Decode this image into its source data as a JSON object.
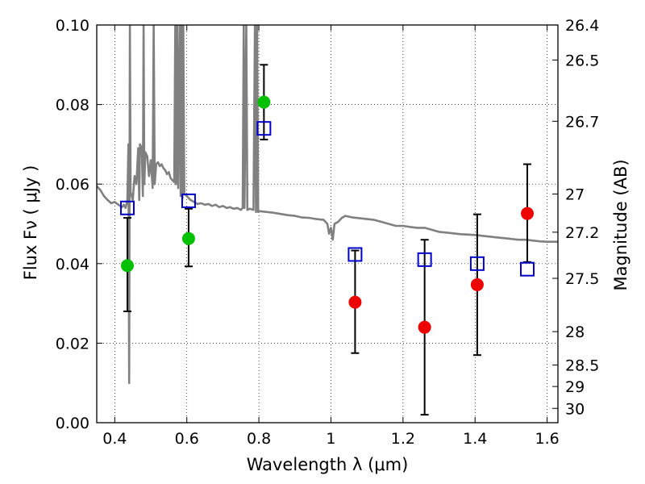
{
  "chart_data": {
    "type": "scatter",
    "title": "",
    "xlabel": "Wavelength  λ (μm)",
    "ylabel": "Flux  Fν  ( μJy )",
    "y2label": "Magnitude (AB)",
    "xlim": [
      0.35,
      1.63
    ],
    "ylim": [
      0.0,
      0.1
    ],
    "grid": true,
    "x_ticks": [
      0.4,
      0.6,
      0.8,
      1.0,
      1.2,
      1.4,
      1.6
    ],
    "x_tick_labels": [
      "0.4",
      "0.6",
      "0.8",
      "1",
      "1.2",
      "1.4",
      "1.6"
    ],
    "y_ticks": [
      0.0,
      0.02,
      0.04,
      0.06,
      0.08,
      0.1
    ],
    "y_tick_labels": [
      "0.00",
      "0.02",
      "0.04",
      "0.06",
      "0.08",
      "0.10"
    ],
    "mag_ticks": [
      {
        "label": "26.4",
        "flux": 0.1
      },
      {
        "label": "26.5",
        "flux": 0.0912
      },
      {
        "label": "26.7",
        "flux": 0.0758
      },
      {
        "label": "27",
        "flux": 0.0575
      },
      {
        "label": "27.2",
        "flux": 0.0479
      },
      {
        "label": "27.5",
        "flux": 0.0363
      },
      {
        "label": "28",
        "flux": 0.0229
      },
      {
        "label": "28.5",
        "flux": 0.0145
      },
      {
        "label": "29",
        "flux": 0.0091
      },
      {
        "label": "30",
        "flux": 0.0036
      }
    ],
    "observed_points": [
      {
        "x": 0.435,
        "y": 0.0395,
        "err_low": 0.0115,
        "err_high": 0.012,
        "color": "#00c000"
      },
      {
        "x": 0.605,
        "y": 0.0463,
        "err_low": 0.007,
        "err_high": 0.0075,
        "color": "#00c000"
      },
      {
        "x": 0.814,
        "y": 0.0806,
        "err_low": 0.0094,
        "err_high": 0.0094,
        "color": "#00c000"
      },
      {
        "x": 1.067,
        "y": 0.0303,
        "err_low": 0.0128,
        "err_high": 0.013,
        "color": "#ee0000"
      },
      {
        "x": 1.26,
        "y": 0.024,
        "err_low": 0.022,
        "err_high": 0.022,
        "color": "#ee0000"
      },
      {
        "x": 1.406,
        "y": 0.0347,
        "err_low": 0.0177,
        "err_high": 0.0177,
        "color": "#ee0000"
      },
      {
        "x": 1.545,
        "y": 0.0526,
        "err_low": 0.0122,
        "err_high": 0.0124,
        "color": "#ee0000"
      }
    ],
    "model_points": {
      "color": "#0000cc",
      "points": [
        {
          "x": 0.435,
          "y": 0.054
        },
        {
          "x": 0.605,
          "y": 0.0558
        },
        {
          "x": 0.814,
          "y": 0.074
        },
        {
          "x": 1.067,
          "y": 0.0423
        },
        {
          "x": 1.26,
          "y": 0.041
        },
        {
          "x": 1.406,
          "y": 0.04
        },
        {
          "x": 1.545,
          "y": 0.0386
        }
      ]
    },
    "sed_model": {
      "color": "#808080",
      "points": [
        [
          0.35,
          0.0595
        ],
        [
          0.36,
          0.0585
        ],
        [
          0.37,
          0.057
        ],
        [
          0.38,
          0.056
        ],
        [
          0.39,
          0.0552
        ],
        [
          0.4,
          0.0555
        ],
        [
          0.41,
          0.0548
        ],
        [
          0.42,
          0.0542
        ],
        [
          0.425,
          0.0548
        ],
        [
          0.43,
          0.054
        ],
        [
          0.435,
          0.056
        ],
        [
          0.438,
          0.07
        ],
        [
          0.44,
          0.01
        ],
        [
          0.442,
          0.1
        ],
        [
          0.444,
          0.058
        ],
        [
          0.45,
          0.056
        ],
        [
          0.455,
          0.062
        ],
        [
          0.46,
          0.06
        ],
        [
          0.465,
          0.069
        ],
        [
          0.468,
          0.056
        ],
        [
          0.47,
          0.07
        ],
        [
          0.475,
          0.069
        ],
        [
          0.478,
          0.057
        ],
        [
          0.48,
          0.1
        ],
        [
          0.482,
          0.06
        ],
        [
          0.485,
          0.068
        ],
        [
          0.49,
          0.067
        ],
        [
          0.495,
          0.062
        ],
        [
          0.5,
          0.066
        ],
        [
          0.505,
          0.059
        ],
        [
          0.508,
          0.1
        ],
        [
          0.511,
          0.06
        ],
        [
          0.515,
          0.065
        ],
        [
          0.52,
          0.0655
        ],
        [
          0.525,
          0.0645
        ],
        [
          0.53,
          0.065
        ],
        [
          0.535,
          0.064
        ],
        [
          0.54,
          0.0635
        ],
        [
          0.545,
          0.0625
        ],
        [
          0.55,
          0.063
        ],
        [
          0.555,
          0.0615
        ],
        [
          0.56,
          0.061
        ],
        [
          0.565,
          0.0605
        ],
        [
          0.568,
          0.1
        ],
        [
          0.57,
          0.06
        ],
        [
          0.573,
          0.1
        ],
        [
          0.576,
          0.059
        ],
        [
          0.58,
          0.1
        ],
        [
          0.583,
          0.057
        ],
        [
          0.585,
          0.1
        ],
        [
          0.588,
          0.0565
        ],
        [
          0.59,
          0.1
        ],
        [
          0.593,
          0.0575
        ],
        [
          0.6,
          0.057
        ],
        [
          0.61,
          0.056
        ],
        [
          0.62,
          0.0555
        ],
        [
          0.63,
          0.055
        ],
        [
          0.64,
          0.0552
        ],
        [
          0.65,
          0.0548
        ],
        [
          0.66,
          0.055
        ],
        [
          0.67,
          0.0545
        ],
        [
          0.68,
          0.0548
        ],
        [
          0.69,
          0.0542
        ],
        [
          0.7,
          0.0545
        ],
        [
          0.71,
          0.054
        ],
        [
          0.72,
          0.0542
        ],
        [
          0.73,
          0.0538
        ],
        [
          0.74,
          0.054
        ],
        [
          0.75,
          0.0535
        ],
        [
          0.755,
          0.054
        ],
        [
          0.758,
          0.1
        ],
        [
          0.76,
          0.054
        ],
        [
          0.765,
          0.1
        ],
        [
          0.768,
          0.0535
        ],
        [
          0.775,
          0.0538
        ],
        [
          0.785,
          0.0535
        ],
        [
          0.789,
          0.1
        ],
        [
          0.792,
          0.053
        ],
        [
          0.795,
          0.1
        ],
        [
          0.798,
          0.053
        ],
        [
          0.8,
          0.0532
        ],
        [
          0.82,
          0.053
        ],
        [
          0.84,
          0.0528
        ],
        [
          0.86,
          0.0525
        ],
        [
          0.88,
          0.0522
        ],
        [
          0.9,
          0.052
        ],
        [
          0.92,
          0.0516
        ],
        [
          0.94,
          0.0515
        ],
        [
          0.96,
          0.0512
        ],
        [
          0.98,
          0.051
        ],
        [
          0.99,
          0.05
        ],
        [
          0.995,
          0.0475
        ],
        [
          1.0,
          0.049
        ],
        [
          1.005,
          0.046
        ],
        [
          1.01,
          0.05
        ],
        [
          1.02,
          0.0505
        ],
        [
          1.03,
          0.0515
        ],
        [
          1.04,
          0.052
        ],
        [
          1.05,
          0.0518
        ],
        [
          1.06,
          0.0516
        ],
        [
          1.08,
          0.0514
        ],
        [
          1.1,
          0.0512
        ],
        [
          1.12,
          0.051
        ],
        [
          1.14,
          0.0505
        ],
        [
          1.16,
          0.05
        ],
        [
          1.18,
          0.0495
        ],
        [
          1.2,
          0.0495
        ],
        [
          1.22,
          0.0492
        ],
        [
          1.24,
          0.049
        ],
        [
          1.26,
          0.049
        ],
        [
          1.28,
          0.0485
        ],
        [
          1.3,
          0.048
        ],
        [
          1.32,
          0.0478
        ],
        [
          1.34,
          0.0476
        ],
        [
          1.36,
          0.0474
        ],
        [
          1.38,
          0.0473
        ],
        [
          1.4,
          0.0472
        ],
        [
          1.42,
          0.047
        ],
        [
          1.44,
          0.0468
        ],
        [
          1.46,
          0.0466
        ],
        [
          1.48,
          0.0464
        ],
        [
          1.5,
          0.0462
        ],
        [
          1.52,
          0.046
        ],
        [
          1.54,
          0.046
        ],
        [
          1.56,
          0.0458
        ],
        [
          1.58,
          0.0456
        ],
        [
          1.6,
          0.0455
        ],
        [
          1.63,
          0.0455
        ]
      ]
    }
  }
}
